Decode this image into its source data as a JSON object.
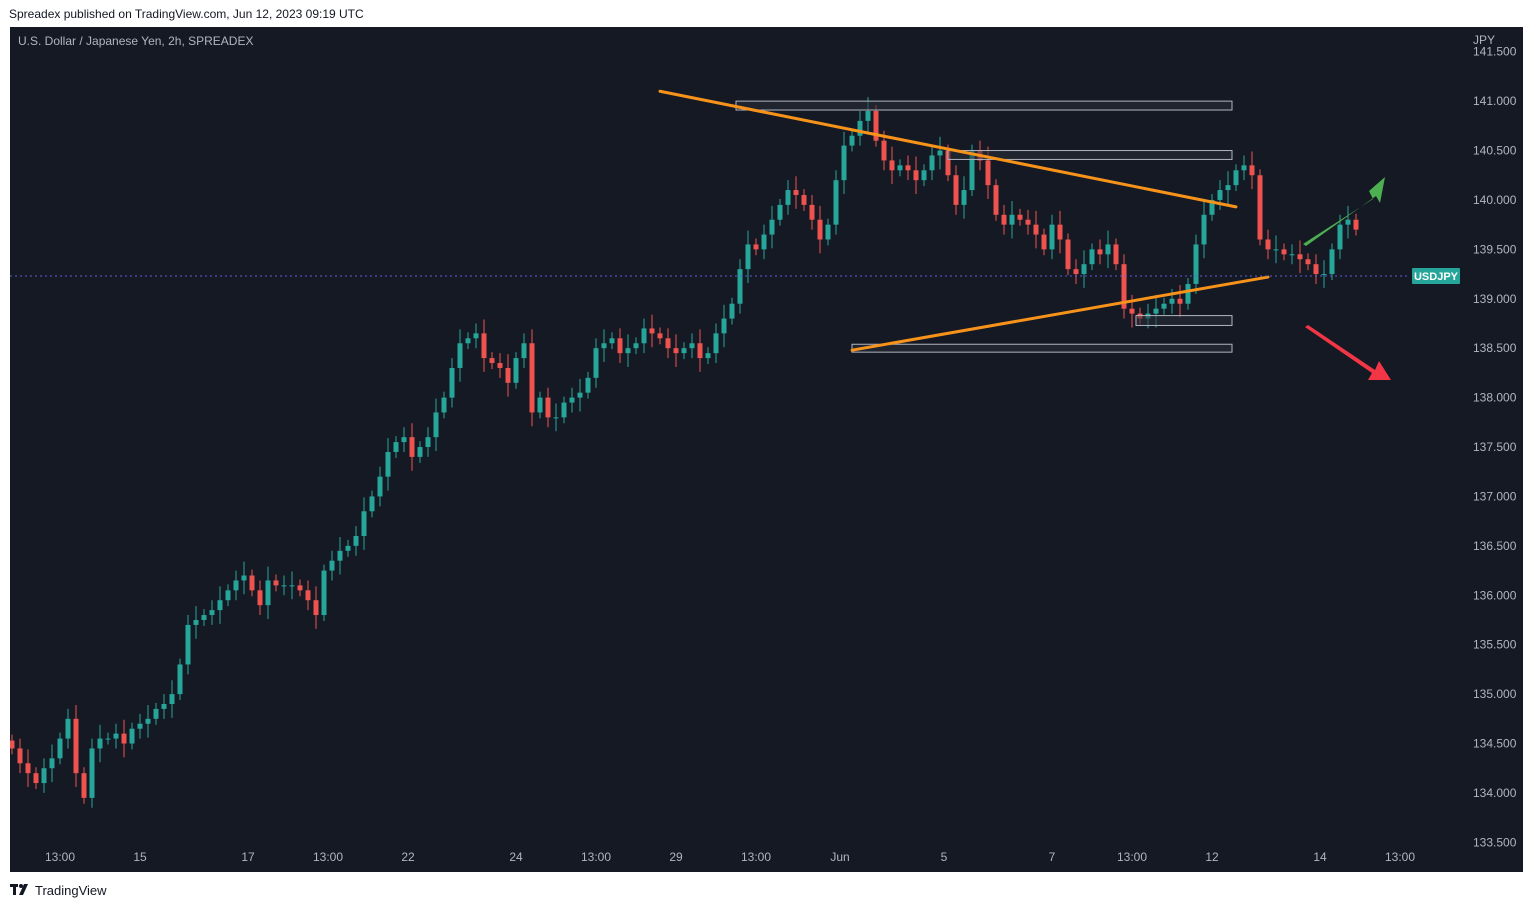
{
  "header": {
    "published_text": "Spreadex published on TradingView.com, Jun 12, 2023 09:19 UTC"
  },
  "footer": {
    "brand": "TradingView"
  },
  "colors": {
    "background": "#151924",
    "up_candle": "#26a69a",
    "down_candle": "#ef5350",
    "trendline": "#f7931a",
    "price_tag": "#26a69a",
    "current_price_line": "#5b5fd6",
    "bull_arrow": "#4caf50",
    "bear_arrow": "#f23645",
    "axis_text": "#b2b5be"
  },
  "icons": {
    "brand_logo": "tradingview-logo-icon",
    "bull_arrow": "arrow-up-right-icon",
    "bear_arrow": "arrow-down-right-icon"
  },
  "chart_data": {
    "type": "candlestick",
    "title": "U.S. Dollar / Japanese Yen, 2h, SPREADEX",
    "symbol": "USDJPY",
    "currency_label": "JPY",
    "current_price": 139.23,
    "ylim": [
      133.2,
      141.75
    ],
    "y_ticks": [
      141.5,
      141.0,
      140.5,
      140.0,
      139.5,
      139.0,
      138.5,
      138.0,
      137.5,
      137.0,
      136.5,
      136.0,
      135.5,
      135.0,
      134.5,
      134.0,
      133.5
    ],
    "y_tick_labels": [
      "141.500",
      "141.000",
      "140.500",
      "140.000",
      "139.500",
      "139.000",
      "138.500",
      "138.000",
      "137.500",
      "137.000",
      "136.500",
      "136.000",
      "135.500",
      "135.000",
      "134.500",
      "134.000",
      "133.500"
    ],
    "x_range": [
      0,
      168
    ],
    "x_ticks": [
      {
        "x": 6,
        "label": "13:00"
      },
      {
        "x": 16,
        "label": "15"
      },
      {
        "x": 29.5,
        "label": "17"
      },
      {
        "x": 39.5,
        "label": "13:00"
      },
      {
        "x": 49.5,
        "label": "22"
      },
      {
        "x": 63,
        "label": "24"
      },
      {
        "x": 73,
        "label": "13:00"
      },
      {
        "x": 83,
        "label": "29"
      },
      {
        "x": 93,
        "label": "13:00"
      },
      {
        "x": 103.5,
        "label": "Jun"
      },
      {
        "x": 116.5,
        "label": "5"
      },
      {
        "x": 130,
        "label": "7"
      },
      {
        "x": 140,
        "label": "13:00"
      },
      {
        "x": 150,
        "label": "12"
      },
      {
        "x": 163.5,
        "label": "14"
      },
      {
        "x": 173.5,
        "label": "13:00"
      }
    ],
    "closes": [
      134.45,
      134.3,
      134.2,
      134.1,
      134.25,
      134.35,
      134.55,
      134.75,
      134.2,
      133.95,
      134.45,
      134.55,
      134.55,
      134.6,
      134.5,
      134.65,
      134.7,
      134.75,
      134.85,
      134.9,
      135.0,
      135.3,
      135.7,
      135.75,
      135.8,
      135.85,
      135.95,
      136.05,
      136.15,
      136.2,
      136.05,
      135.9,
      136.15,
      136.1,
      136.1,
      136.1,
      136.05,
      135.95,
      135.8,
      136.25,
      136.35,
      136.45,
      136.5,
      136.6,
      136.85,
      137.0,
      137.2,
      137.45,
      137.55,
      137.6,
      137.4,
      137.5,
      137.6,
      137.85,
      138.0,
      138.3,
      138.55,
      138.6,
      138.65,
      138.4,
      138.35,
      138.3,
      138.15,
      138.4,
      138.55,
      137.85,
      138.0,
      137.8,
      137.8,
      137.95,
      138.0,
      138.05,
      138.2,
      138.5,
      138.55,
      138.6,
      138.45,
      138.5,
      138.55,
      138.7,
      138.65,
      138.6,
      138.5,
      138.45,
      138.5,
      138.55,
      138.4,
      138.45,
      138.65,
      138.8,
      138.95,
      139.3,
      139.55,
      139.5,
      139.65,
      139.8,
      139.95,
      140.1,
      140.05,
      139.95,
      139.8,
      139.6,
      139.75,
      140.2,
      140.55,
      140.65,
      140.8,
      140.9,
      140.6,
      140.4,
      140.3,
      140.35,
      140.3,
      140.2,
      140.3,
      140.45,
      140.5,
      140.25,
      139.95,
      140.1,
      140.5,
      140.4,
      140.15,
      139.85,
      139.75,
      139.85,
      139.8,
      139.75,
      139.65,
      139.5,
      139.75,
      139.6,
      139.3,
      139.25,
      139.35,
      139.5,
      139.45,
      139.55,
      139.35,
      138.9,
      138.85,
      138.8,
      138.85,
      138.9,
      138.95,
      139.0,
      138.95,
      139.15,
      139.55,
      139.85,
      140.0,
      140.1,
      140.15,
      140.3,
      140.35,
      140.25,
      139.6,
      139.5,
      139.5,
      139.45,
      139.45,
      139.4,
      139.35,
      139.25,
      139.25,
      139.5,
      139.75,
      139.8,
      139.7
    ],
    "trendlines": [
      {
        "name": "upper",
        "from": [
          81,
          141.1
        ],
        "to": [
          153,
          139.93
        ]
      },
      {
        "name": "lower",
        "from": [
          105,
          138.48
        ],
        "to": [
          157,
          139.22
        ]
      }
    ],
    "zones": [
      {
        "from_x": 90.5,
        "to_x": 152.5,
        "low": 140.91,
        "high": 141.0
      },
      {
        "from_x": 117,
        "to_x": 152.5,
        "low": 140.41,
        "high": 140.5
      },
      {
        "from_x": 140.5,
        "to_x": 152.5,
        "low": 138.73,
        "high": 138.83
      },
      {
        "from_x": 105,
        "to_x": 152.5,
        "low": 138.46,
        "high": 138.54
      }
    ]
  }
}
